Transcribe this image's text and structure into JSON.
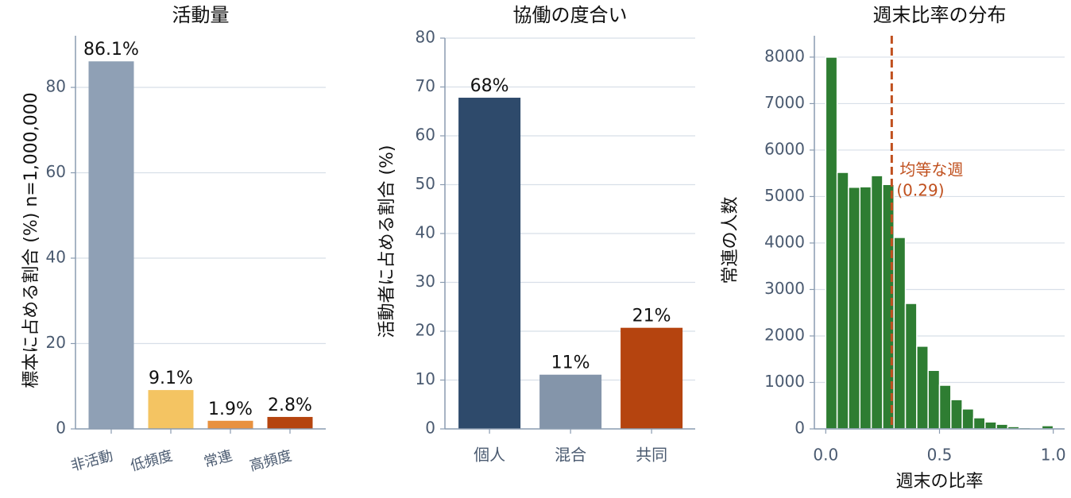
{
  "chart_data": [
    {
      "type": "bar",
      "title": "活動量",
      "ylabel": "標本に占める割合 (%)  n=1,000,000",
      "categories": [
        "非活動",
        "低頻度",
        "常連",
        "高頻度"
      ],
      "values": [
        86.1,
        9.1,
        1.9,
        2.8
      ],
      "value_labels": [
        "86.1%",
        "9.1%",
        "1.9%",
        "2.8%"
      ],
      "colors": [
        "#8fa0b5",
        "#f4c462",
        "#e8913f",
        "#b5440f"
      ],
      "ylim": [
        0,
        92.1
      ],
      "yticks": [
        0,
        20,
        40,
        60,
        80
      ],
      "grid": true,
      "rotate_categories": true
    },
    {
      "type": "bar",
      "title": "協働の度合い",
      "ylabel": "活動者に占める割合 (%)",
      "categories": [
        "個人",
        "混合",
        "共同"
      ],
      "values": [
        67.8,
        11.1,
        20.7
      ],
      "value_labels": [
        "68%",
        "11%",
        "21%"
      ],
      "colors": [
        "#2e4a6b",
        "#8495aa",
        "#b5440f"
      ],
      "ylim": [
        0,
        80
      ],
      "yticks": [
        0,
        10,
        20,
        30,
        40,
        50,
        60,
        70,
        80
      ],
      "grid": true,
      "rotate_categories": false
    },
    {
      "type": "histogram",
      "title": "週末比率の分布",
      "xlabel": "週末の比率",
      "ylabel": "常連の人数",
      "bins": [
        0,
        0.05,
        0.1,
        0.15,
        0.2,
        0.25,
        0.3,
        0.35,
        0.4,
        0.45,
        0.5,
        0.55,
        0.6,
        0.65,
        0.7,
        0.75,
        0.8,
        0.85,
        0.9,
        0.95,
        1.0
      ],
      "counts": [
        8000,
        5520,
        5200,
        5210,
        5450,
        5260,
        4120,
        2700,
        1780,
        1260,
        940,
        630,
        430,
        240,
        150,
        100,
        50,
        30,
        15,
        70
      ],
      "color": "#2e7d32",
      "xlim": [
        -0.05,
        1.05
      ],
      "xticks": [
        {
          "value": 0,
          "label": "0.0"
        },
        {
          "value": 0.5,
          "label": "0.5"
        },
        {
          "value": 1,
          "label": "1.0"
        }
      ],
      "ylim": [
        0,
        8460
      ],
      "yticks": [
        0,
        1000,
        2000,
        3000,
        4000,
        5000,
        6000,
        7000,
        8000
      ],
      "grid": true,
      "reference": {
        "value": 0.29,
        "label": "(0.29)",
        "text": "均等な週",
        "color": "#c0501e"
      }
    }
  ]
}
